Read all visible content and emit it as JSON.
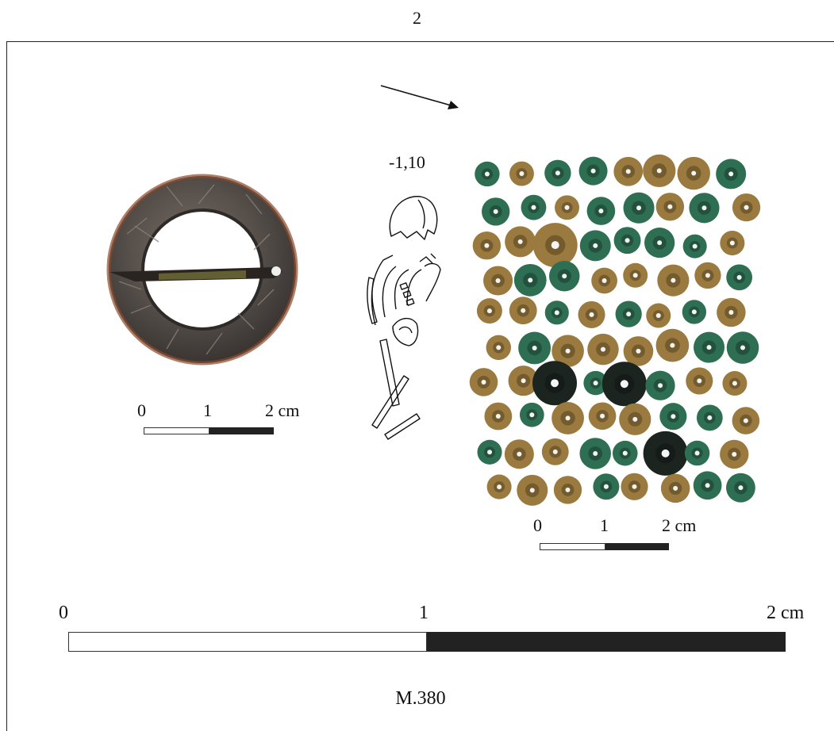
{
  "plate": {
    "number": "2"
  },
  "grave": {
    "depth": "-1,10",
    "id": "M.380"
  },
  "scale_brooch": {
    "zero": "0",
    "one": "1",
    "two": "2 cm"
  },
  "scale_beads": {
    "zero": "0",
    "one": "1",
    "two": "2 cm"
  },
  "scale_main": {
    "zero": "0",
    "one": "1",
    "two": "2 cm"
  },
  "colors": {
    "brooch_ring": "#5a5450",
    "brooch_rust": "#8a4a2c",
    "bead_amber": "#9a7a3e",
    "bead_green": "#2e6e52",
    "bead_dark": "#1c2420",
    "scale_black": "#222222"
  },
  "icons": {
    "orientation": "north-arrow-icon"
  }
}
